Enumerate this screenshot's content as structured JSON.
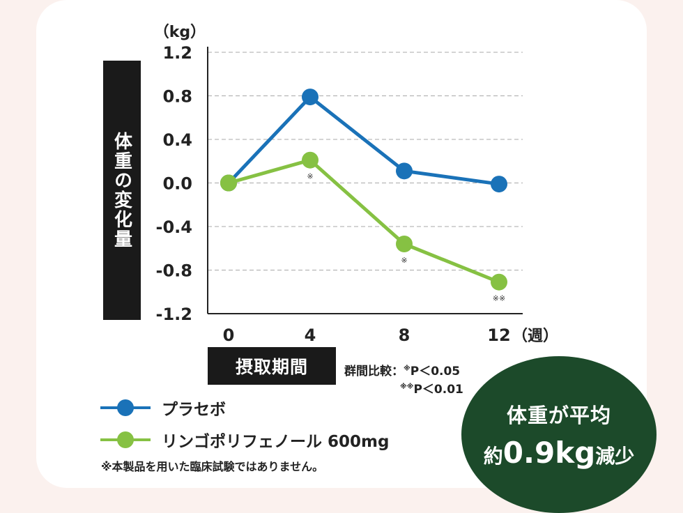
{
  "chart_data": {
    "type": "line",
    "unit_label": "（kg）",
    "ylabel": "体重の変化量",
    "xlabel": "摂取期間",
    "x_unit": "（週）",
    "categories": [
      "0",
      "4",
      "8",
      "12"
    ],
    "x": [
      0,
      4,
      8,
      12
    ],
    "ylim": [
      -1.2,
      1.2
    ],
    "yticks": [
      "1.2",
      "0.8",
      "0.4",
      "0.0",
      "-0.4",
      "-0.8",
      "-1.2"
    ],
    "grid": true,
    "series": [
      {
        "name": "プラセボ",
        "color": "#1a72b8",
        "values": [
          0.0,
          0.79,
          0.11,
          -0.01
        ]
      },
      {
        "name": "リンゴポリフェノール 600mg",
        "color": "#86c143",
        "values": [
          0.0,
          0.21,
          -0.56,
          -0.91
        ]
      }
    ],
    "annotations": [
      "",
      "※",
      "※",
      "※※"
    ]
  },
  "significance": {
    "line1_prefix": "群間比較：",
    "line1_mark": "※",
    "line1_value": "P＜0.05",
    "line2_mark": "※※",
    "line2_value": "P＜0.01"
  },
  "note": "※本製品を用いた臨床試験ではありません。",
  "badge": {
    "line1": "体重が平均",
    "line2_prefix": "約",
    "line2_value": "0.9kg",
    "line2_suffix": "減少"
  }
}
